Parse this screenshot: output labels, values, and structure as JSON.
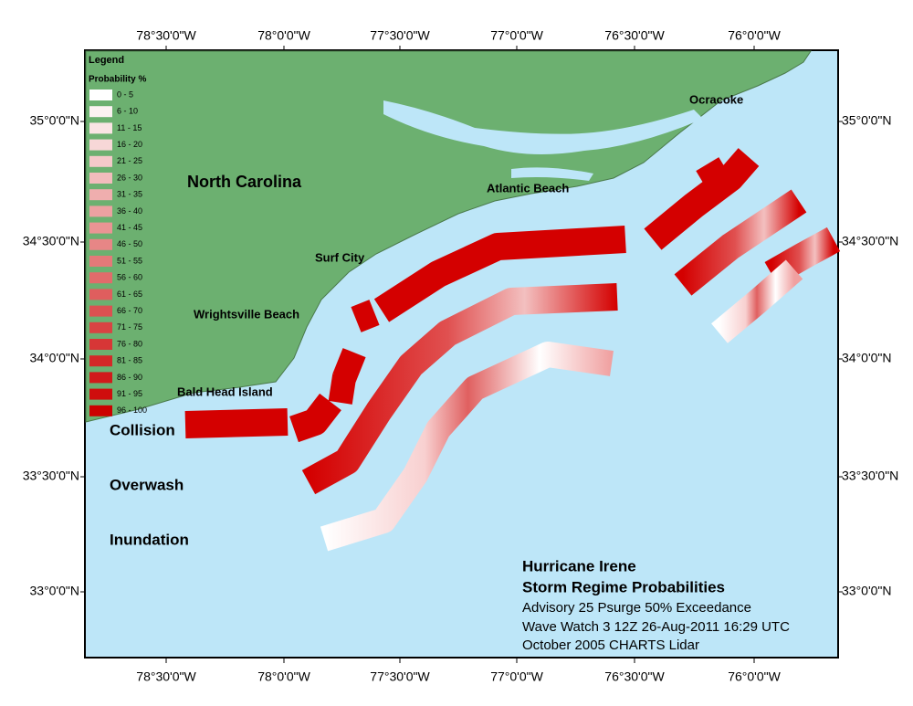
{
  "map": {
    "longitude_labels": [
      "78°30'0\"W",
      "78°0'0\"W",
      "77°30'0\"W",
      "77°0'0\"W",
      "76°30'0\"W",
      "76°0'0\"W"
    ],
    "latitude_labels": [
      "35°0'0\"N",
      "34°30'0\"N",
      "34°0'0\"N",
      "33°30'0\"N",
      "33°0'0\"N"
    ],
    "legend": {
      "title": "Legend",
      "subtitle": "Probability %",
      "items": [
        {
          "label": "0 - 5",
          "color": "#ffffff"
        },
        {
          "label": "6 - 10",
          "color": "#fcf2f2"
        },
        {
          "label": "11 - 15",
          "color": "#fae4e4"
        },
        {
          "label": "16 - 20",
          "color": "#f7d7d7"
        },
        {
          "label": "21 - 25",
          "color": "#f4c9c9"
        },
        {
          "label": "26 - 30",
          "color": "#f2bcbc"
        },
        {
          "label": "31 - 35",
          "color": "#efaeae"
        },
        {
          "label": "36 - 40",
          "color": "#eca1a1"
        },
        {
          "label": "41 - 45",
          "color": "#ea9494"
        },
        {
          "label": "46 - 50",
          "color": "#e78686"
        },
        {
          "label": "51 - 55",
          "color": "#e47979"
        },
        {
          "label": "56 - 60",
          "color": "#e16b6b"
        },
        {
          "label": "61 - 65",
          "color": "#df5e5e"
        },
        {
          "label": "66 - 70",
          "color": "#dc5151"
        },
        {
          "label": "71 - 75",
          "color": "#d94343"
        },
        {
          "label": "76 - 80",
          "color": "#d73636"
        },
        {
          "label": "81 - 85",
          "color": "#d42828"
        },
        {
          "label": "86 - 90",
          "color": "#d11b1b"
        },
        {
          "label": "91 - 95",
          "color": "#cf0d0d"
        },
        {
          "label": "96 - 100",
          "color": "#cc0000"
        }
      ]
    },
    "places": [
      "North Carolina",
      "Atlantic Beach",
      "Ocracoke",
      "Surf City",
      "Wrightsville Beach",
      "Bald Head Island"
    ],
    "regimes": [
      "Collision",
      "Overwash",
      "Inundation"
    ],
    "title_block": [
      "Hurricane Irene",
      "Storm Regime Probabilities",
      "Advisory 25 Psurge 50% Exceedance",
      "Wave Watch 3 12Z 26-Aug-2011 16:29 UTC",
      "October 2005 CHARTS Lidar"
    ]
  }
}
